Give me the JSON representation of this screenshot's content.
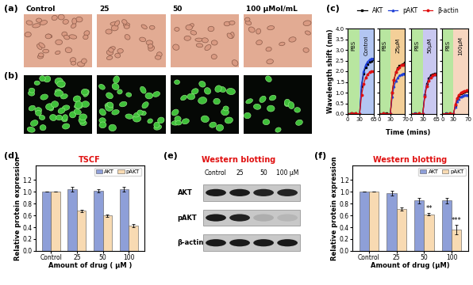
{
  "chart_data": [
    {
      "type": "line",
      "label": "(c)",
      "y_label": "Wavelength shift (nm)",
      "x_label": "Time (mins)",
      "ylim": [
        0,
        4
      ],
      "yticks": [
        {
          "value": 0,
          "label": "0.0"
        },
        {
          "value": 0.5,
          "label": "0.5"
        },
        {
          "value": 1,
          "label": "1.0"
        },
        {
          "value": 1.5,
          "label": "1.5"
        },
        {
          "value": 2,
          "label": "2.0"
        },
        {
          "value": 2.5,
          "label": "2.5"
        },
        {
          "value": 3,
          "label": "3.0"
        },
        {
          "value": 3.5,
          "label": "3.5"
        },
        {
          "value": 4,
          "label": "4.0"
        }
      ],
      "legend": "upper center",
      "panels": [
        {
          "xlim": [
            0,
            65
          ],
          "xticks": [
            0,
            30,
            65
          ],
          "phases": [
            {
              "label": "PBS",
              "start": 0,
              "end": 30,
              "color": "#b8e6a0"
            },
            {
              "label": "Control",
              "start": 30,
              "end": 65,
              "color": "#b3c6f2"
            }
          ],
          "x": [
            0,
            10,
            20,
            30,
            35,
            40,
            45,
            50,
            55,
            60,
            65
          ],
          "series": [
            {
              "name": "AKT",
              "color": "#000000",
              "marker": "square",
              "values": [
                0.0,
                0.05,
                0.02,
                0.0,
                1.3,
                1.9,
                2.2,
                2.35,
                2.45,
                2.5,
                2.55
              ]
            },
            {
              "name": "pAKT",
              "color": "#1f3fd6",
              "marker": "triangle",
              "values": [
                0.0,
                0.03,
                0.0,
                0.02,
                1.4,
                2.0,
                2.3,
                2.45,
                2.55,
                2.6,
                2.6
              ]
            },
            {
              "name": "β-actin",
              "color": "#e01010",
              "marker": "circle",
              "values": [
                0.0,
                0.02,
                0.03,
                0.0,
                0.9,
                1.4,
                1.7,
                1.85,
                1.95,
                2.0,
                2.0
              ]
            }
          ]
        },
        {
          "xlim": [
            0,
            70
          ],
          "xticks": [
            0,
            30,
            70
          ],
          "phases": [
            {
              "label": "PBS",
              "start": 0,
              "end": 30,
              "color": "#b8e6a0"
            },
            {
              "label": "25μM",
              "start": 30,
              "end": 70,
              "color": "#f3cf98"
            }
          ],
          "x": [
            0,
            10,
            20,
            30,
            35,
            40,
            45,
            50,
            55,
            60,
            65,
            70
          ],
          "series": [
            {
              "name": "AKT",
              "color": "#000000",
              "marker": "square",
              "values": [
                0.0,
                0.02,
                0.03,
                0.0,
                1.0,
                1.6,
                1.95,
                2.15,
                2.25,
                2.3,
                2.35,
                2.4
              ]
            },
            {
              "name": "pAKT",
              "color": "#1f3fd6",
              "marker": "triangle",
              "values": [
                0.0,
                0.03,
                0.0,
                0.02,
                0.8,
                1.3,
                1.55,
                1.7,
                1.8,
                1.85,
                1.9,
                1.9
              ]
            },
            {
              "name": "β-actin",
              "color": "#e01010",
              "marker": "circle",
              "values": [
                0.0,
                0.02,
                0.01,
                0.0,
                1.0,
                1.6,
                1.95,
                2.1,
                2.2,
                2.3,
                2.3,
                2.35
              ]
            }
          ]
        },
        {
          "xlim": [
            0,
            65
          ],
          "xticks": [
            0,
            30,
            65
          ],
          "phases": [
            {
              "label": "PBS",
              "start": 0,
              "end": 30,
              "color": "#b8e6a0"
            },
            {
              "label": "50μM",
              "start": 30,
              "end": 65,
              "color": "#c9c8f0"
            }
          ],
          "x": [
            0,
            10,
            20,
            30,
            35,
            40,
            45,
            50,
            55,
            60,
            65
          ],
          "series": [
            {
              "name": "AKT",
              "color": "#000000",
              "marker": "square",
              "values": [
                0.0,
                0.02,
                0.02,
                0.0,
                0.9,
                1.4,
                1.65,
                1.8,
                1.85,
                1.9,
                1.9
              ]
            },
            {
              "name": "pAKT",
              "color": "#1f3fd6",
              "marker": "triangle",
              "values": [
                0.0,
                0.03,
                0.0,
                0.02,
                0.9,
                1.35,
                1.6,
                1.75,
                1.8,
                1.85,
                1.9
              ]
            },
            {
              "name": "β-actin",
              "color": "#e01010",
              "marker": "circle",
              "values": [
                0.0,
                0.01,
                0.02,
                0.0,
                0.8,
                1.3,
                1.55,
                1.7,
                1.8,
                1.85,
                1.85
              ]
            }
          ]
        },
        {
          "xlim": [
            0,
            70
          ],
          "xticks": [
            0,
            30,
            70
          ],
          "phases": [
            {
              "label": "PBS",
              "start": 0,
              "end": 30,
              "color": "#b8e6a0"
            },
            {
              "label": "100μM",
              "start": 30,
              "end": 70,
              "color": "#f7d6c0"
            }
          ],
          "x": [
            0,
            10,
            20,
            30,
            35,
            40,
            45,
            50,
            55,
            60,
            65,
            70
          ],
          "series": [
            {
              "name": "AKT",
              "color": "#000000",
              "marker": "square",
              "values": [
                0.0,
                0.02,
                0.03,
                0.0,
                0.4,
                0.7,
                0.85,
                0.95,
                1.0,
                1.05,
                1.08,
                1.1
              ]
            },
            {
              "name": "pAKT",
              "color": "#1f3fd6",
              "marker": "triangle",
              "values": [
                0.0,
                0.02,
                0.0,
                0.02,
                0.35,
                0.6,
                0.72,
                0.8,
                0.85,
                0.88,
                0.9,
                0.9
              ]
            },
            {
              "name": "β-actin",
              "color": "#e01010",
              "marker": "circle",
              "values": [
                0.0,
                0.01,
                0.02,
                0.0,
                0.45,
                0.75,
                0.9,
                1.0,
                1.05,
                1.08,
                1.1,
                1.12
              ]
            }
          ]
        }
      ]
    },
    {
      "type": "bar",
      "label": "(d)",
      "title": "TSCF",
      "x_label": "Amount of drug ( μM )",
      "y_label": "Relative protein expression",
      "categories": [
        "Control",
        "25",
        "50",
        "100"
      ],
      "series": [
        {
          "name": "AKT",
          "color": "#8e9fd8",
          "values": [
            1.0,
            1.05,
            1.02,
            1.04
          ],
          "errors": [
            0,
            0.04,
            0.03,
            0.04
          ]
        },
        {
          "name": "pAKT",
          "color": "#f8dab2",
          "values": [
            1.0,
            0.68,
            0.6,
            0.43
          ],
          "errors": [
            0,
            0.02,
            0.02,
            0.03
          ]
        }
      ],
      "ylim": [
        0,
        1.45
      ],
      "yticks": [
        {
          "value": 0,
          "label": "0.0"
        },
        {
          "value": 0.2,
          "label": "0.2"
        },
        {
          "value": 0.4,
          "label": "0.4"
        },
        {
          "value": 0.6,
          "label": "0.6"
        },
        {
          "value": 0.8,
          "label": "0.8"
        },
        {
          "value": 1,
          "label": "1.0"
        },
        {
          "value": 1.2,
          "label": "1.2"
        }
      ],
      "legend": "upper right"
    },
    {
      "type": "bar",
      "label": "(f)",
      "title": "Western blotting",
      "x_label": "Amount of drug (μM)",
      "y_label": "Relative protein expression",
      "categories": [
        "Control",
        "25",
        "50",
        "100"
      ],
      "series": [
        {
          "name": "AKT",
          "color": "#8e9fd8",
          "values": [
            1.0,
            0.98,
            0.85,
            0.85
          ],
          "errors": [
            0,
            0.04,
            0.05,
            0.05
          ]
        },
        {
          "name": "pAKT",
          "color": "#f8dab2",
          "values": [
            1.0,
            0.71,
            0.62,
            0.36
          ],
          "errors": [
            0,
            0.03,
            0.02,
            0.08
          ]
        }
      ],
      "annotations": [
        {
          "category": "50",
          "series": "pAKT",
          "text": "**"
        },
        {
          "category": "100",
          "series": "pAKT",
          "text": "***"
        }
      ],
      "ylim": [
        0,
        1.45
      ],
      "yticks": [
        {
          "value": 0,
          "label": "0.0"
        },
        {
          "value": 0.2,
          "label": "0.2"
        },
        {
          "value": 0.4,
          "label": "0.4"
        },
        {
          "value": 0.6,
          "label": "0.6"
        },
        {
          "value": 0.8,
          "label": "0.8"
        },
        {
          "value": 1,
          "label": "1.0"
        },
        {
          "value": 1.2,
          "label": "1.2"
        }
      ],
      "legend": "upper right"
    }
  ],
  "images": {
    "a": {
      "label": "(a)",
      "captions": [
        "Control",
        "25",
        "50",
        "100 μMol/mL"
      ]
    },
    "b": {
      "label": "(b)"
    }
  },
  "blot": {
    "label": "(e)",
    "title": "Western blotting",
    "lanes": [
      "Control",
      "25",
      "50",
      "100 μM"
    ],
    "rows": [
      {
        "name": "AKT",
        "intensity": [
          1.0,
          1.0,
          0.95,
          0.95
        ]
      },
      {
        "name": "pAKT",
        "intensity": [
          1.0,
          0.95,
          0.15,
          0.1
        ]
      },
      {
        "name": "β-actin",
        "intensity": [
          1.0,
          1.0,
          1.0,
          1.0
        ]
      }
    ]
  }
}
